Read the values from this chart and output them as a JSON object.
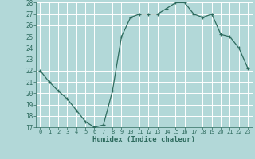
{
  "x": [
    0,
    1,
    2,
    3,
    4,
    5,
    6,
    7,
    8,
    9,
    10,
    11,
    12,
    13,
    14,
    15,
    16,
    17,
    18,
    19,
    20,
    21,
    22,
    23
  ],
  "y": [
    22,
    21,
    20.2,
    19.5,
    18.5,
    17.5,
    17,
    17.2,
    20.2,
    25,
    26.7,
    27,
    27,
    27,
    27.5,
    28,
    28,
    27,
    26.7,
    27,
    25.2,
    25,
    24,
    22.2
  ],
  "line_color": "#2e6b5e",
  "marker": "+",
  "marker_color": "#2e6b5e",
  "bg_color": "#b2d8d8",
  "grid_major_color": "#ffffff",
  "grid_minor_color": "#c8e8e8",
  "tick_label_color": "#2e6b5e",
  "xlabel": "Humidex (Indice chaleur)",
  "xlabel_color": "#2e6b5e",
  "ylim": [
    17,
    28
  ],
  "xlim": [
    -0.5,
    23.5
  ],
  "yticks": [
    17,
    18,
    19,
    20,
    21,
    22,
    23,
    24,
    25,
    26,
    27,
    28
  ],
  "xticks": [
    0,
    1,
    2,
    3,
    4,
    5,
    6,
    7,
    8,
    9,
    10,
    11,
    12,
    13,
    14,
    15,
    16,
    17,
    18,
    19,
    20,
    21,
    22,
    23
  ]
}
